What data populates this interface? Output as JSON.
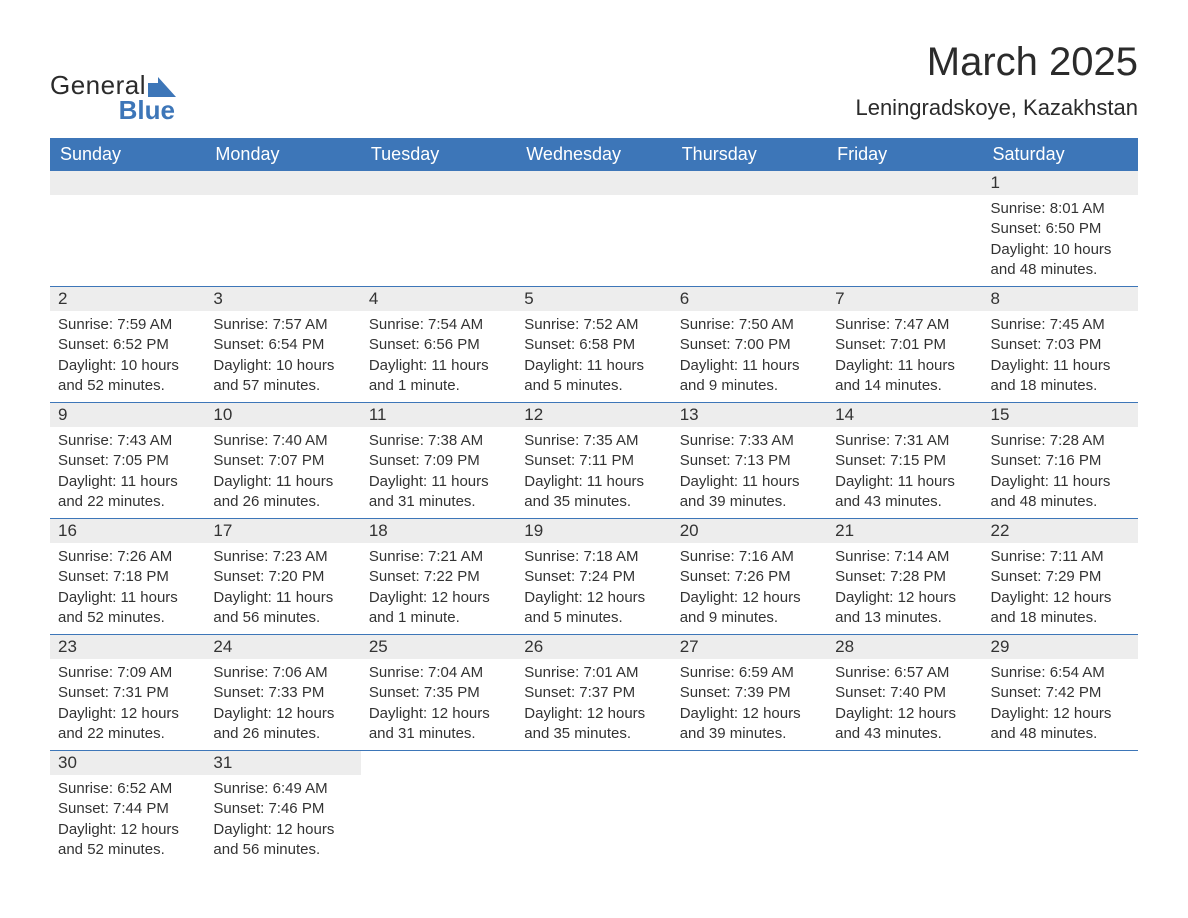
{
  "logo": {
    "line1": "General",
    "line2": "Blue",
    "color_dark": "#2b2b2b",
    "color_blue": "#3d76b8"
  },
  "title": "March 2025",
  "location": "Leningradskoye, Kazakhstan",
  "colors": {
    "header_bg": "#3d76b8",
    "header_text": "#ffffff",
    "daynum_bg": "#ededed",
    "text": "#333333",
    "border": "#3d76b8",
    "page_bg": "#ffffff"
  },
  "fonts": {
    "title_size": 40,
    "location_size": 22,
    "header_size": 18,
    "daynum_size": 17,
    "detail_size": 15
  },
  "day_headers": [
    "Sunday",
    "Monday",
    "Tuesday",
    "Wednesday",
    "Thursday",
    "Friday",
    "Saturday"
  ],
  "weeks": [
    [
      null,
      null,
      null,
      null,
      null,
      null,
      {
        "n": "1",
        "sr": "Sunrise: 8:01 AM",
        "ss": "Sunset: 6:50 PM",
        "dl1": "Daylight: 10 hours",
        "dl2": "and 48 minutes."
      }
    ],
    [
      {
        "n": "2",
        "sr": "Sunrise: 7:59 AM",
        "ss": "Sunset: 6:52 PM",
        "dl1": "Daylight: 10 hours",
        "dl2": "and 52 minutes."
      },
      {
        "n": "3",
        "sr": "Sunrise: 7:57 AM",
        "ss": "Sunset: 6:54 PM",
        "dl1": "Daylight: 10 hours",
        "dl2": "and 57 minutes."
      },
      {
        "n": "4",
        "sr": "Sunrise: 7:54 AM",
        "ss": "Sunset: 6:56 PM",
        "dl1": "Daylight: 11 hours",
        "dl2": "and 1 minute."
      },
      {
        "n": "5",
        "sr": "Sunrise: 7:52 AM",
        "ss": "Sunset: 6:58 PM",
        "dl1": "Daylight: 11 hours",
        "dl2": "and 5 minutes."
      },
      {
        "n": "6",
        "sr": "Sunrise: 7:50 AM",
        "ss": "Sunset: 7:00 PM",
        "dl1": "Daylight: 11 hours",
        "dl2": "and 9 minutes."
      },
      {
        "n": "7",
        "sr": "Sunrise: 7:47 AM",
        "ss": "Sunset: 7:01 PM",
        "dl1": "Daylight: 11 hours",
        "dl2": "and 14 minutes."
      },
      {
        "n": "8",
        "sr": "Sunrise: 7:45 AM",
        "ss": "Sunset: 7:03 PM",
        "dl1": "Daylight: 11 hours",
        "dl2": "and 18 minutes."
      }
    ],
    [
      {
        "n": "9",
        "sr": "Sunrise: 7:43 AM",
        "ss": "Sunset: 7:05 PM",
        "dl1": "Daylight: 11 hours",
        "dl2": "and 22 minutes."
      },
      {
        "n": "10",
        "sr": "Sunrise: 7:40 AM",
        "ss": "Sunset: 7:07 PM",
        "dl1": "Daylight: 11 hours",
        "dl2": "and 26 minutes."
      },
      {
        "n": "11",
        "sr": "Sunrise: 7:38 AM",
        "ss": "Sunset: 7:09 PM",
        "dl1": "Daylight: 11 hours",
        "dl2": "and 31 minutes."
      },
      {
        "n": "12",
        "sr": "Sunrise: 7:35 AM",
        "ss": "Sunset: 7:11 PM",
        "dl1": "Daylight: 11 hours",
        "dl2": "and 35 minutes."
      },
      {
        "n": "13",
        "sr": "Sunrise: 7:33 AM",
        "ss": "Sunset: 7:13 PM",
        "dl1": "Daylight: 11 hours",
        "dl2": "and 39 minutes."
      },
      {
        "n": "14",
        "sr": "Sunrise: 7:31 AM",
        "ss": "Sunset: 7:15 PM",
        "dl1": "Daylight: 11 hours",
        "dl2": "and 43 minutes."
      },
      {
        "n": "15",
        "sr": "Sunrise: 7:28 AM",
        "ss": "Sunset: 7:16 PM",
        "dl1": "Daylight: 11 hours",
        "dl2": "and 48 minutes."
      }
    ],
    [
      {
        "n": "16",
        "sr": "Sunrise: 7:26 AM",
        "ss": "Sunset: 7:18 PM",
        "dl1": "Daylight: 11 hours",
        "dl2": "and 52 minutes."
      },
      {
        "n": "17",
        "sr": "Sunrise: 7:23 AM",
        "ss": "Sunset: 7:20 PM",
        "dl1": "Daylight: 11 hours",
        "dl2": "and 56 minutes."
      },
      {
        "n": "18",
        "sr": "Sunrise: 7:21 AM",
        "ss": "Sunset: 7:22 PM",
        "dl1": "Daylight: 12 hours",
        "dl2": "and 1 minute."
      },
      {
        "n": "19",
        "sr": "Sunrise: 7:18 AM",
        "ss": "Sunset: 7:24 PM",
        "dl1": "Daylight: 12 hours",
        "dl2": "and 5 minutes."
      },
      {
        "n": "20",
        "sr": "Sunrise: 7:16 AM",
        "ss": "Sunset: 7:26 PM",
        "dl1": "Daylight: 12 hours",
        "dl2": "and 9 minutes."
      },
      {
        "n": "21",
        "sr": "Sunrise: 7:14 AM",
        "ss": "Sunset: 7:28 PM",
        "dl1": "Daylight: 12 hours",
        "dl2": "and 13 minutes."
      },
      {
        "n": "22",
        "sr": "Sunrise: 7:11 AM",
        "ss": "Sunset: 7:29 PM",
        "dl1": "Daylight: 12 hours",
        "dl2": "and 18 minutes."
      }
    ],
    [
      {
        "n": "23",
        "sr": "Sunrise: 7:09 AM",
        "ss": "Sunset: 7:31 PM",
        "dl1": "Daylight: 12 hours",
        "dl2": "and 22 minutes."
      },
      {
        "n": "24",
        "sr": "Sunrise: 7:06 AM",
        "ss": "Sunset: 7:33 PM",
        "dl1": "Daylight: 12 hours",
        "dl2": "and 26 minutes."
      },
      {
        "n": "25",
        "sr": "Sunrise: 7:04 AM",
        "ss": "Sunset: 7:35 PM",
        "dl1": "Daylight: 12 hours",
        "dl2": "and 31 minutes."
      },
      {
        "n": "26",
        "sr": "Sunrise: 7:01 AM",
        "ss": "Sunset: 7:37 PM",
        "dl1": "Daylight: 12 hours",
        "dl2": "and 35 minutes."
      },
      {
        "n": "27",
        "sr": "Sunrise: 6:59 AM",
        "ss": "Sunset: 7:39 PM",
        "dl1": "Daylight: 12 hours",
        "dl2": "and 39 minutes."
      },
      {
        "n": "28",
        "sr": "Sunrise: 6:57 AM",
        "ss": "Sunset: 7:40 PM",
        "dl1": "Daylight: 12 hours",
        "dl2": "and 43 minutes."
      },
      {
        "n": "29",
        "sr": "Sunrise: 6:54 AM",
        "ss": "Sunset: 7:42 PM",
        "dl1": "Daylight: 12 hours",
        "dl2": "and 48 minutes."
      }
    ],
    [
      {
        "n": "30",
        "sr": "Sunrise: 6:52 AM",
        "ss": "Sunset: 7:44 PM",
        "dl1": "Daylight: 12 hours",
        "dl2": "and 52 minutes."
      },
      {
        "n": "31",
        "sr": "Sunrise: 6:49 AM",
        "ss": "Sunset: 7:46 PM",
        "dl1": "Daylight: 12 hours",
        "dl2": "and 56 minutes."
      },
      null,
      null,
      null,
      null,
      null
    ]
  ]
}
